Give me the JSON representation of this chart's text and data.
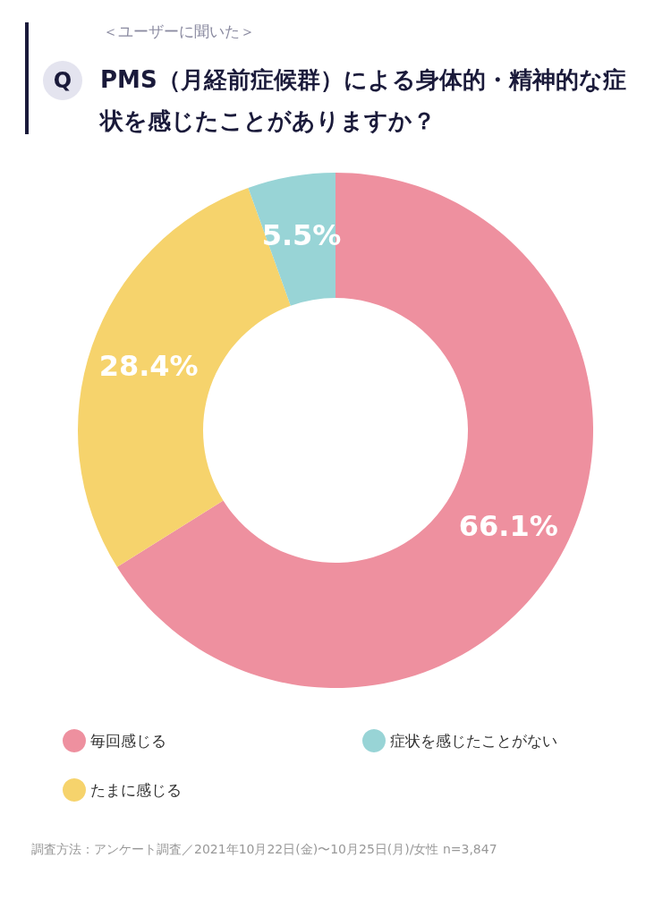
{
  "chart_data": {
    "type": "donut",
    "subtitle": "＜ユーザーに聞いた＞",
    "title": "PMS（月経前症候群）による身体的・精神的な症状を感じたことがありますか？",
    "categories": [
      "毎回感じる",
      "たまに感じる",
      "症状を感じたことがない"
    ],
    "values": [
      66.1,
      28.4,
      5.5
    ],
    "colors": [
      "#ee909f",
      "#f6d36c",
      "#98d4d6"
    ],
    "value_labels": [
      "66.1%",
      "28.4%",
      "5.5%"
    ],
    "legend": "bottom",
    "annotations": [
      "Q",
      "調査方法：アンケート調査／2021年10月22日(金)〜10月25日(月)/女性 n=3,847"
    ]
  }
}
